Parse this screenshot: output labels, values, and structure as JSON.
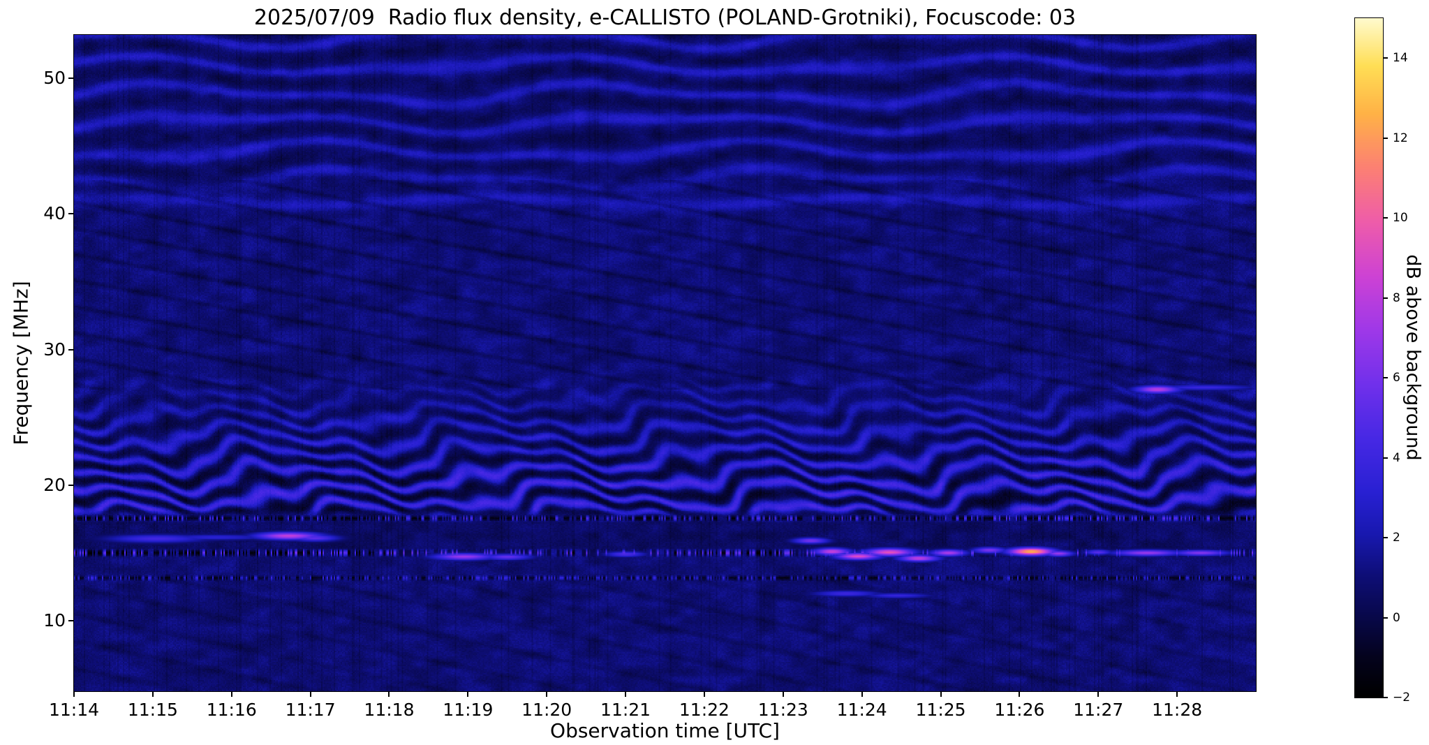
{
  "chart_data": {
    "type": "heatmap",
    "title": "2025/07/09  Radio flux density, e-CALLISTO (POLAND-Grotniki), Focuscode: 03",
    "xlabel": "Observation time [UTC]",
    "ylabel": "Frequency [MHz]",
    "x_ticks": [
      "11:14",
      "11:15",
      "11:16",
      "11:17",
      "11:18",
      "11:19",
      "11:20",
      "11:21",
      "11:22",
      "11:23",
      "11:24",
      "11:25",
      "11:26",
      "11:27",
      "11:28"
    ],
    "x_axis_span_minutes": 15,
    "x_start": "11:14",
    "y_ticks": [
      10,
      20,
      30,
      40,
      50
    ],
    "y_range_mhz": [
      4.8,
      53.2
    ],
    "grid": false,
    "colorbar": {
      "label": "dB above background",
      "ticks": [
        -2,
        0,
        2,
        4,
        6,
        8,
        10,
        12,
        14
      ],
      "range": [
        -2,
        15
      ],
      "colormap": "gnuplot2-like: black, dark blue, blue, violet, magenta, pink, orange, yellow, white"
    },
    "background_level_db": 1.0,
    "bands": [
      {
        "name": "ripple-band",
        "f_lo": 41,
        "f_hi": 53.2,
        "style": "wavy-horizontal-ripples",
        "spacing_mhz": 2.1,
        "peak_db": 2.5
      },
      {
        "name": "wavy-line-41mhz",
        "freq": 40.9,
        "style": "single-wavy-line",
        "peak_db": 2.3
      },
      {
        "name": "diagonal-texture",
        "f_lo": 27,
        "f_hi": 42.5,
        "style": "dark-diagonal-stripes"
      },
      {
        "name": "strong-wavy-band",
        "f_lo": 17.6,
        "f_hi": 28.5,
        "style": "bright-wavy-stripes-with-dark-gaps",
        "spacing_mhz": 1.45,
        "peak_db": 4.5
      },
      {
        "name": "rfi-line-17",
        "freq": 17.55,
        "style": "speckled-dark-bright-dashes"
      },
      {
        "name": "rfi-line-15",
        "freq": 15.0,
        "style": "speckled-dark-bright-dashes-strong"
      },
      {
        "name": "rfi-line-13",
        "freq": 13.15,
        "style": "speckled-dark-bright-dashes-faint"
      },
      {
        "name": "low-band",
        "f_lo": 4.8,
        "f_hi": 13,
        "style": "faint-diagonal-texture"
      }
    ],
    "features": [
      {
        "t_min_after_1114": 1.05,
        "freq_mhz": 16.05,
        "st": 0.45,
        "sf": 0.22,
        "peak_db": 4.2
      },
      {
        "t_min_after_1114": 1.8,
        "freq_mhz": 16.15,
        "st": 0.5,
        "sf": 0.15,
        "peak_db": 3.2
      },
      {
        "t_min_after_1114": 2.72,
        "freq_mhz": 16.25,
        "st": 0.3,
        "sf": 0.2,
        "peak_db": 8.2
      },
      {
        "t_min_after_1114": 3.05,
        "freq_mhz": 16.1,
        "st": 0.22,
        "sf": 0.18,
        "peak_db": 5.2
      },
      {
        "t_min_after_1114": 4.95,
        "freq_mhz": 14.72,
        "st": 0.28,
        "sf": 0.18,
        "peak_db": 7.0
      },
      {
        "t_min_after_1114": 5.5,
        "freq_mhz": 14.7,
        "st": 0.22,
        "sf": 0.16,
        "peak_db": 5.4
      },
      {
        "t_min_after_1114": 7.0,
        "freq_mhz": 14.9,
        "st": 0.18,
        "sf": 0.15,
        "peak_db": 4.6
      },
      {
        "t_min_after_1114": 9.35,
        "freq_mhz": 15.9,
        "st": 0.16,
        "sf": 0.16,
        "peak_db": 6.0
      },
      {
        "t_min_after_1114": 9.62,
        "freq_mhz": 15.1,
        "st": 0.16,
        "sf": 0.18,
        "peak_db": 8.4
      },
      {
        "t_min_after_1114": 9.95,
        "freq_mhz": 14.75,
        "st": 0.2,
        "sf": 0.18,
        "peak_db": 9.0
      },
      {
        "t_min_after_1114": 10.35,
        "freq_mhz": 15.05,
        "st": 0.22,
        "sf": 0.2,
        "peak_db": 9.4
      },
      {
        "t_min_after_1114": 10.72,
        "freq_mhz": 14.6,
        "st": 0.18,
        "sf": 0.17,
        "peak_db": 8.2
      },
      {
        "t_min_after_1114": 11.1,
        "freq_mhz": 15.0,
        "st": 0.16,
        "sf": 0.17,
        "peak_db": 7.6
      },
      {
        "t_min_after_1114": 11.62,
        "freq_mhz": 15.2,
        "st": 0.15,
        "sf": 0.16,
        "peak_db": 6.2
      },
      {
        "t_min_after_1114": 12.15,
        "freq_mhz": 15.1,
        "st": 0.2,
        "sf": 0.2,
        "peak_db": 12.6
      },
      {
        "t_min_after_1114": 12.5,
        "freq_mhz": 14.95,
        "st": 0.13,
        "sf": 0.15,
        "peak_db": 7.0
      },
      {
        "t_min_after_1114": 13.0,
        "freq_mhz": 15.05,
        "st": 0.12,
        "sf": 0.14,
        "peak_db": 5.0
      },
      {
        "t_min_after_1114": 13.62,
        "freq_mhz": 15.0,
        "st": 0.3,
        "sf": 0.16,
        "peak_db": 7.0
      },
      {
        "t_min_after_1114": 14.3,
        "freq_mhz": 15.0,
        "st": 0.25,
        "sf": 0.15,
        "peak_db": 6.4
      },
      {
        "t_min_after_1114": 13.75,
        "freq_mhz": 27.05,
        "st": 0.2,
        "sf": 0.2,
        "peak_db": 8.0
      },
      {
        "t_min_after_1114": 14.35,
        "freq_mhz": 27.2,
        "st": 0.45,
        "sf": 0.15,
        "peak_db": 3.8
      },
      {
        "t_min_after_1114": 9.8,
        "freq_mhz": 12.0,
        "st": 0.3,
        "sf": 0.16,
        "peak_db": 4.0
      },
      {
        "t_min_after_1114": 10.45,
        "freq_mhz": 11.85,
        "st": 0.3,
        "sf": 0.14,
        "peak_db": 3.6
      }
    ]
  }
}
